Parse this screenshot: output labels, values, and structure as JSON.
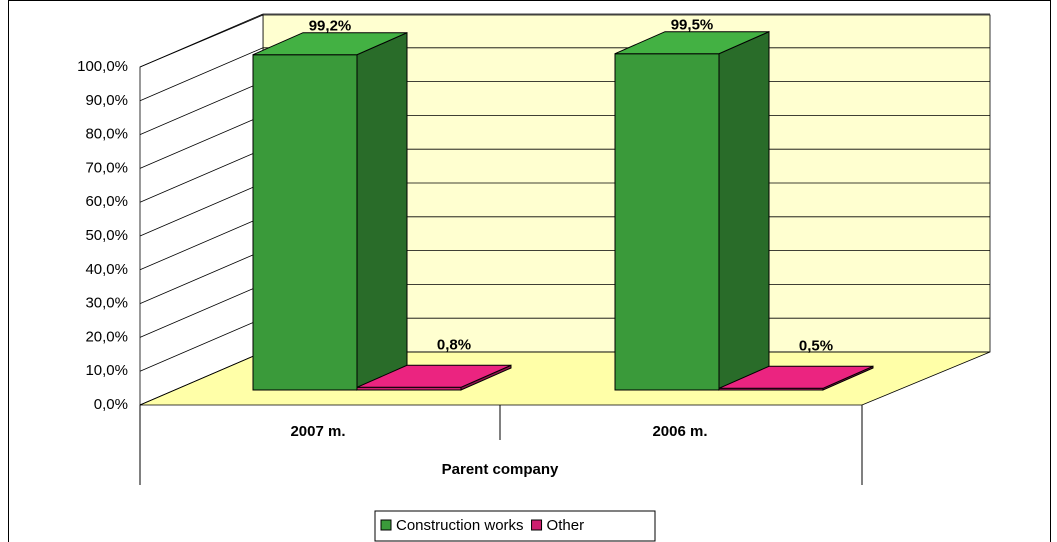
{
  "chart_data": {
    "type": "bar3d",
    "categories": [
      "2007 m.",
      "2006 m."
    ],
    "group_label": "Parent company",
    "series": [
      {
        "name": "Construction works",
        "color": "#3a9a3a",
        "values": [
          99.2,
          99.5
        ],
        "value_labels": [
          "99,2%",
          "99,5%"
        ]
      },
      {
        "name": "Other",
        "color": "#cc1f6f",
        "values": [
          0.8,
          0.5
        ],
        "value_labels": [
          "0,8%",
          "0,5%"
        ]
      }
    ],
    "ylim": [
      0,
      100
    ],
    "yticks": [
      {
        "value": 0,
        "label": "0,0%"
      },
      {
        "value": 10,
        "label": "10,0%"
      },
      {
        "value": 20,
        "label": "20,0%"
      },
      {
        "value": 30,
        "label": "30,0%"
      },
      {
        "value": 40,
        "label": "40,0%"
      },
      {
        "value": 50,
        "label": "50,0%"
      },
      {
        "value": 60,
        "label": "60,0%"
      },
      {
        "value": 70,
        "label": "70,0%"
      },
      {
        "value": 80,
        "label": "80,0%"
      },
      {
        "value": 90,
        "label": "90,0%"
      },
      {
        "value": 100,
        "label": "100,0%"
      }
    ],
    "grid": true
  }
}
